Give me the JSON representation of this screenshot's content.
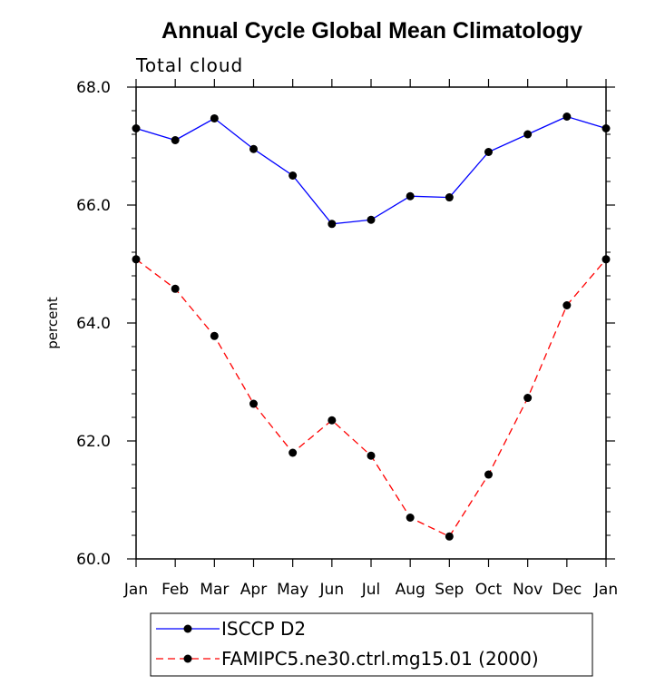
{
  "chart_data": {
    "type": "line",
    "title": "Annual Cycle Global Mean Climatology",
    "subtitle": "Total cloud",
    "xlabel": "",
    "ylabel": "percent",
    "categories": [
      "Jan",
      "Feb",
      "Mar",
      "Apr",
      "May",
      "Jun",
      "Jul",
      "Aug",
      "Sep",
      "Oct",
      "Nov",
      "Dec",
      "Jan"
    ],
    "ylim": [
      60.0,
      68.0
    ],
    "yticks": [
      "60.0",
      "62.0",
      "64.0",
      "66.0",
      "68.0"
    ],
    "grid": false,
    "legend_position": "bottom",
    "series": [
      {
        "name": "ISCCP D2",
        "color": "#0000ff",
        "dash": "solid",
        "marker": "circle",
        "values": [
          67.3,
          67.1,
          67.47,
          66.95,
          66.5,
          65.68,
          65.75,
          66.15,
          66.13,
          66.9,
          67.2,
          67.5,
          67.3
        ]
      },
      {
        "name": "FAMIPC5.ne30.ctrl.mg15.01 (2000)",
        "color": "#ff0000",
        "dash": "dashed",
        "marker": "circle",
        "values": [
          65.08,
          64.58,
          63.78,
          62.63,
          61.8,
          62.35,
          61.75,
          60.7,
          60.38,
          61.43,
          62.73,
          64.3,
          65.08
        ]
      }
    ]
  }
}
